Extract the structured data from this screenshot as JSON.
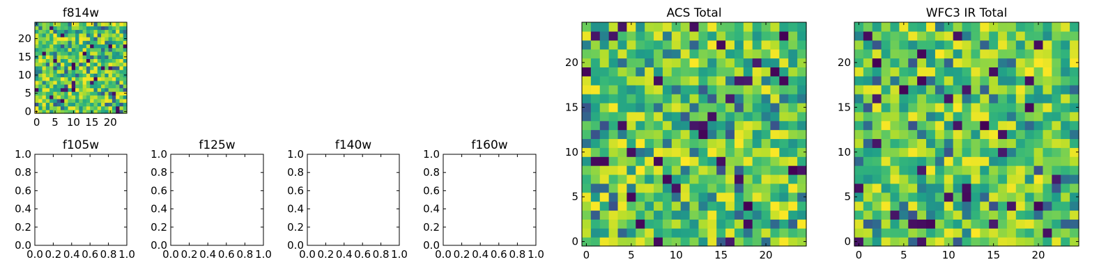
{
  "chart_data": [
    {
      "id": "f814w",
      "type": "heatmap",
      "title": "f814w",
      "xlim": [
        -0.5,
        24.5
      ],
      "ylim": [
        -0.5,
        24.5
      ],
      "xticks": [
        0,
        5,
        10,
        15,
        20
      ],
      "yticks": [
        0,
        5,
        10,
        15,
        20
      ],
      "colormap": "viridis",
      "grid_size": [
        25,
        25
      ]
    },
    {
      "id": "f105w",
      "type": "heatmap",
      "title": "f105w",
      "empty": true,
      "xlim": [
        0,
        1
      ],
      "ylim": [
        0,
        1
      ],
      "xticks": [
        "0.0",
        "0.2",
        "0.4",
        "0.6",
        "0.8",
        "1.0"
      ],
      "yticks": [
        "0.0",
        "0.2",
        "0.4",
        "0.6",
        "0.8",
        "1.0"
      ]
    },
    {
      "id": "f125w",
      "type": "heatmap",
      "title": "f125w",
      "empty": true,
      "xlim": [
        0,
        1
      ],
      "ylim": [
        0,
        1
      ],
      "xticks": [
        "0.0",
        "0.2",
        "0.4",
        "0.6",
        "0.8",
        "1.0"
      ],
      "yticks": [
        "0.0",
        "0.2",
        "0.4",
        "0.6",
        "0.8",
        "1.0"
      ]
    },
    {
      "id": "f140w",
      "type": "heatmap",
      "title": "f140w",
      "empty": true,
      "xlim": [
        0,
        1
      ],
      "ylim": [
        0,
        1
      ],
      "xticks": [
        "0.0",
        "0.2",
        "0.4",
        "0.6",
        "0.8",
        "1.0"
      ],
      "yticks": [
        "0.0",
        "0.2",
        "0.4",
        "0.6",
        "0.8",
        "1.0"
      ]
    },
    {
      "id": "f160w",
      "type": "heatmap",
      "title": "f160w",
      "empty": true,
      "xlim": [
        0,
        1
      ],
      "ylim": [
        0,
        1
      ],
      "xticks": [
        "0.0",
        "0.2",
        "0.4",
        "0.6",
        "0.8",
        "1.0"
      ],
      "yticks": [
        "0.0",
        "0.2",
        "0.4",
        "0.6",
        "0.8",
        "1.0"
      ]
    },
    {
      "id": "acs-total",
      "type": "heatmap",
      "title": "ACS Total",
      "xlim": [
        -0.5,
        24.5
      ],
      "ylim": [
        -0.5,
        24.5
      ],
      "xticks": [
        0,
        5,
        10,
        15,
        20
      ],
      "yticks": [
        0,
        5,
        10,
        15,
        20
      ],
      "colormap": "viridis",
      "grid_size": [
        25,
        25
      ]
    },
    {
      "id": "wfc3-ir-total",
      "type": "heatmap",
      "title": "WFC3 IR Total",
      "xlim": [
        -0.5,
        24.5
      ],
      "ylim": [
        -0.5,
        24.5
      ],
      "xticks": [
        0,
        5,
        10,
        15,
        20
      ],
      "yticks": [
        0,
        5,
        10,
        15,
        20
      ],
      "colormap": "viridis",
      "grid_size": [
        25,
        25
      ]
    }
  ]
}
